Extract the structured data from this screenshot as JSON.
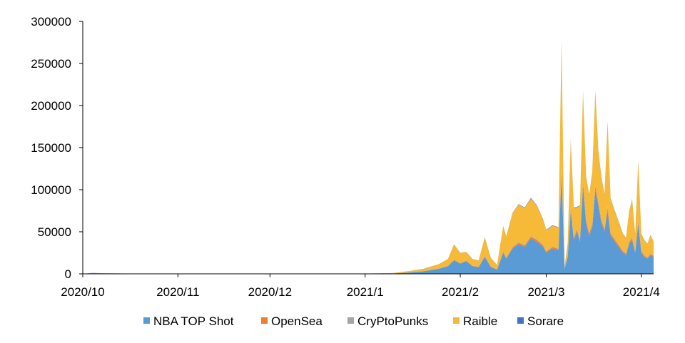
{
  "chart_data": {
    "type": "area",
    "stacked": true,
    "title": "",
    "xlabel": "",
    "ylabel": "",
    "ylim": [
      0,
      300000
    ],
    "yticks": [
      "0",
      "50000",
      "100000",
      "150000",
      "200000",
      "250000",
      "300000"
    ],
    "xticks": [
      "2020/10",
      "2020/11",
      "2020/12",
      "2021/1",
      "2021/2",
      "2021/3",
      "2021/4"
    ],
    "grid": false,
    "legend_position": "bottom",
    "x": [
      "2020/10/01",
      "2020/10/04",
      "2020/10/08",
      "2020/10/12",
      "2020/10/16",
      "2020/10/20",
      "2020/10/24",
      "2020/10/28",
      "2020/11/01",
      "2020/11/10",
      "2020/11/20",
      "2020/12/01",
      "2020/12/15",
      "2021/01/01",
      "2021/01/10",
      "2021/01/15",
      "2021/01/20",
      "2021/01/25",
      "2021/01/28",
      "2021/01/30",
      "2021/02/01",
      "2021/02/03",
      "2021/02/05",
      "2021/02/07",
      "2021/02/09",
      "2021/02/11",
      "2021/02/13",
      "2021/02/15",
      "2021/02/16",
      "2021/02/18",
      "2021/02/20",
      "2021/02/22",
      "2021/02/24",
      "2021/02/26",
      "2021/02/28",
      "2021/03/01",
      "2021/03/03",
      "2021/03/05",
      "2021/03/06",
      "2021/03/07",
      "2021/03/08",
      "2021/03/09",
      "2021/03/10",
      "2021/03/11",
      "2021/03/12",
      "2021/03/13",
      "2021/03/14",
      "2021/03/15",
      "2021/03/16",
      "2021/03/17",
      "2021/03/18",
      "2021/03/19",
      "2021/03/20",
      "2021/03/21",
      "2021/03/22",
      "2021/03/23",
      "2021/03/24",
      "2021/03/25",
      "2021/03/26",
      "2021/03/27",
      "2021/03/28",
      "2021/03/29",
      "2021/03/30",
      "2021/03/31",
      "2021/04/01",
      "2021/04/02",
      "2021/04/03",
      "2021/04/04",
      "2021/04/05"
    ],
    "series": [
      {
        "name": "NBA TOP Shot",
        "color": "#5b9bd5",
        "values": [
          0,
          300,
          0,
          200,
          0,
          0,
          0,
          0,
          0,
          0,
          0,
          0,
          0,
          0,
          500,
          1500,
          3000,
          6000,
          9000,
          16000,
          12000,
          15000,
          9000,
          8000,
          20000,
          8000,
          5000,
          25000,
          18000,
          30000,
          35000,
          32000,
          42000,
          38000,
          32000,
          25000,
          30000,
          28000,
          120000,
          6000,
          20000,
          75000,
          40000,
          50000,
          38000,
          105000,
          60000,
          45000,
          55000,
          100000,
          80000,
          60000,
          50000,
          75000,
          45000,
          40000,
          35000,
          30000,
          25000,
          22000,
          35000,
          40000,
          25000,
          60000,
          25000,
          20000,
          18000,
          22000,
          20000
        ]
      },
      {
        "name": "OpenSea",
        "color": "#ed7d31",
        "values": [
          0,
          0,
          0,
          0,
          0,
          0,
          0,
          0,
          0,
          0,
          0,
          0,
          0,
          0,
          0,
          100,
          200,
          300,
          400,
          600,
          500,
          600,
          400,
          400,
          800,
          400,
          300,
          1000,
          800,
          1200,
          1500,
          1500,
          1800,
          1800,
          1500,
          1200,
          1500,
          1400,
          4000,
          500,
          1000,
          3000,
          2000,
          2500,
          2000,
          4000,
          3000,
          2500,
          3000,
          4000,
          3500,
          3000,
          2500,
          3500,
          2500,
          2000,
          2000,
          1800,
          1500,
          1500,
          2000,
          2200,
          1500,
          2500,
          1500,
          1200,
          1000,
          1200,
          1200
        ]
      },
      {
        "name": "CryPtoPunks",
        "color": "#a5a5a5",
        "values": [
          0,
          0,
          0,
          0,
          0,
          0,
          0,
          0,
          0,
          0,
          0,
          0,
          0,
          0,
          0,
          50,
          100,
          150,
          200,
          300,
          300,
          300,
          200,
          200,
          400,
          200,
          200,
          500,
          400,
          600,
          800,
          800,
          900,
          900,
          800,
          700,
          800,
          700,
          2000,
          300,
          500,
          1500,
          1000,
          1200,
          1000,
          2000,
          1500,
          1200,
          1500,
          2000,
          1800,
          1500,
          1200,
          1800,
          1200,
          1000,
          1000,
          900,
          800,
          800,
          1000,
          1100,
          800,
          1200,
          800,
          600,
          500,
          600,
          600
        ]
      },
      {
        "name": "Raible",
        "color": "#f6b938",
        "values": [
          0,
          500,
          800,
          400,
          300,
          0,
          200,
          0,
          200,
          0,
          300,
          0,
          200,
          300,
          400,
          1500,
          2500,
          5000,
          8000,
          18000,
          12000,
          10000,
          8000,
          7000,
          22000,
          10000,
          5000,
          30000,
          25000,
          40000,
          45000,
          44000,
          45000,
          40000,
          30000,
          25000,
          25000,
          25000,
          150000,
          2000,
          15000,
          80000,
          35000,
          25000,
          40000,
          105000,
          50000,
          45000,
          60000,
          110000,
          60000,
          50000,
          40000,
          100000,
          40000,
          35000,
          30000,
          25000,
          20000,
          18000,
          35000,
          45000,
          20000,
          70000,
          20000,
          18000,
          16000,
          22000,
          16000
        ]
      },
      {
        "name": "Sorare",
        "color": "#4472c4",
        "values": [
          0,
          200,
          0,
          0,
          0,
          0,
          0,
          0,
          0,
          0,
          0,
          0,
          0,
          0,
          0,
          50,
          100,
          100,
          150,
          200,
          200,
          200,
          150,
          150,
          300,
          150,
          100,
          300,
          300,
          400,
          500,
          500,
          600,
          600,
          500,
          400,
          500,
          400,
          1000,
          200,
          300,
          800,
          600,
          700,
          600,
          1000,
          800,
          700,
          800,
          1000,
          900,
          800,
          700,
          900,
          700,
          600,
          600,
          500,
          400,
          400,
          600,
          700,
          400,
          800,
          400,
          350,
          300,
          350,
          350
        ]
      }
    ]
  }
}
